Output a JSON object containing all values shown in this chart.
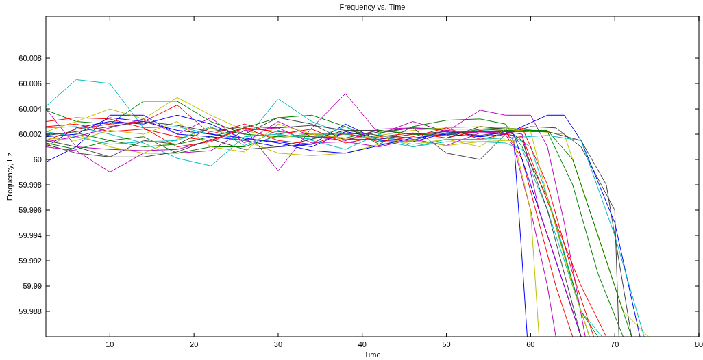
{
  "chart_data": {
    "type": "line",
    "title": "Frequency vs. Time",
    "xlabel": "Time",
    "ylabel": "Frequency, Hz",
    "xlim": [
      2.4,
      80
    ],
    "xticks": [
      10,
      20,
      30,
      40,
      50,
      60,
      70,
      80
    ],
    "ylim": [
      59.986,
      60.0113
    ],
    "yticks": [
      59.988,
      59.99,
      59.992,
      59.994,
      59.996,
      59.998,
      60,
      60.002,
      60.004,
      60.006,
      60.008
    ],
    "grid": false,
    "line_style": "solid",
    "series": [
      {
        "color": "#00bfbf",
        "x": [
          2.4,
          6,
          10,
          14,
          18,
          22,
          26,
          30,
          34,
          38,
          42,
          46,
          50,
          54,
          57,
          60,
          63,
          66,
          68.5
        ],
        "values": [
          60.0042,
          60.0063,
          60.006,
          60.0025,
          60.0026,
          60.002,
          60.0015,
          60.0048,
          60.003,
          60.002,
          60.0016,
          60.002,
          60.0021,
          60.0023,
          60.0022,
          60.001,
          59.995,
          59.988,
          59.986
        ]
      },
      {
        "color": "#bf00bf",
        "x": [
          2.4,
          6,
          10,
          14,
          18,
          22,
          26,
          30,
          34,
          38,
          42,
          46,
          50,
          54,
          57,
          60,
          62,
          64,
          66.5
        ],
        "values": [
          60.004,
          60.001,
          60.0008,
          60.0007,
          60.0008,
          60.0015,
          60.0025,
          59.9991,
          60.0025,
          60.0052,
          60.002,
          60.003,
          60.0022,
          60.0039,
          60.0035,
          60.0035,
          60.001,
          59.995,
          59.986
        ]
      },
      {
        "color": "#0000ff",
        "x": [
          2.4,
          6,
          10,
          14,
          18,
          22,
          26,
          30,
          34,
          38,
          42,
          46,
          50,
          54,
          57,
          58,
          59,
          59.6
        ],
        "values": [
          59.9998,
          60.001,
          60.0035,
          60.0035,
          60.002,
          60.0018,
          60.0015,
          60.001,
          60.0012,
          60.0028,
          60.0015,
          60.0014,
          60.0021,
          60.0022,
          60.0022,
          60.0015,
          59.992,
          59.986
        ]
      },
      {
        "color": "#008000",
        "x": [
          2.4,
          6,
          10,
          14,
          18,
          22,
          26,
          30,
          34,
          38,
          42,
          46,
          50,
          54,
          57,
          62,
          65,
          68,
          71
        ],
        "values": [
          60.0039,
          60.003,
          60.0028,
          60.0046,
          60.0046,
          60.003,
          60.002,
          60.0018,
          60.002,
          60.002,
          60.0021,
          60.0025,
          60.0024,
          60.0024,
          60.0025,
          60.0022,
          59.998,
          59.991,
          59.986
        ]
      },
      {
        "color": "#ff0000",
        "x": [
          2.4,
          6,
          10,
          14,
          18,
          22,
          26,
          30,
          34,
          38,
          42,
          46,
          50,
          54,
          57,
          59,
          61,
          63,
          65
        ],
        "values": [
          60.003,
          60.0033,
          60.0032,
          60.0025,
          60.001,
          60.0014,
          60.0025,
          60.0022,
          60.002,
          60.0016,
          60.0016,
          60.002,
          60.002,
          60.0022,
          60.0023,
          60,
          59.995,
          59.99,
          59.986
        ]
      },
      {
        "color": "#bfbf00",
        "x": [
          2.4,
          6,
          10,
          14,
          18,
          22,
          26,
          30,
          34,
          38,
          42,
          46,
          50,
          54,
          57,
          64,
          67,
          71,
          74
        ],
        "values": [
          60.0022,
          60.003,
          60.004,
          60.0032,
          60.0049,
          60.0035,
          60.0023,
          60.0017,
          60.002,
          60.0016,
          60.0019,
          60.0023,
          60.0025,
          60.0026,
          60.0025,
          60.002,
          59.996,
          59.988,
          59.986
        ]
      },
      {
        "color": "#404040",
        "x": [
          2.4,
          6,
          10,
          14,
          18,
          22,
          26,
          30,
          34,
          38,
          42,
          46,
          50,
          54,
          57,
          60,
          63,
          66,
          70,
          70.5
        ],
        "values": [
          60.0012,
          60.0005,
          60.0002,
          60.0015,
          60.0012,
          60.0025,
          60.002,
          60.0033,
          60.0028,
          60.0015,
          60.0022,
          60.0025,
          60.0005,
          60,
          60.002,
          60.0026,
          60.0025,
          60.001,
          59.996,
          59.986
        ]
      },
      {
        "color": "#0000ff",
        "x": [
          2.4,
          6,
          10,
          14,
          18,
          22,
          26,
          30,
          34,
          38,
          42,
          46,
          50,
          54,
          57,
          62,
          64,
          66,
          70,
          73
        ],
        "values": [
          60.001,
          60.0025,
          60.003,
          60.0028,
          60.0035,
          60.0028,
          60.0016,
          60.0014,
          60.001,
          60.0022,
          60.0017,
          60.0015,
          60.0023,
          60.0018,
          60.002,
          60.0035,
          60.0035,
          60.0015,
          59.995,
          59.986
        ]
      },
      {
        "color": "#008000",
        "x": [
          2.4,
          6,
          10,
          14,
          18,
          22,
          26,
          30,
          34,
          38,
          42,
          46,
          50,
          54,
          57,
          59,
          62,
          66,
          68
        ],
        "values": [
          60.002,
          60.0021,
          60.0015,
          60.001,
          60.0012,
          60.0018,
          60.0025,
          60.0033,
          60.0035,
          60.0026,
          60.0012,
          60.0026,
          60.0031,
          60.0032,
          60.0028,
          60.001,
          59.997,
          59.988,
          59.986
        ]
      },
      {
        "color": "#ff0000",
        "x": [
          2.4,
          6,
          10,
          14,
          18,
          22,
          26,
          30,
          34,
          38,
          42,
          46,
          50,
          54,
          57,
          59,
          63,
          66,
          69
        ],
        "values": [
          60.0015,
          60.0024,
          60.0028,
          60.003,
          60.0043,
          60.002,
          60.0028,
          60.002,
          60.0024,
          60.0013,
          60.0018,
          60.0021,
          60.0017,
          60.0023,
          60.002,
          60.0018,
          59.995,
          59.99,
          59.986
        ]
      },
      {
        "color": "#00bfbf",
        "x": [
          2.4,
          6,
          10,
          14,
          18,
          22,
          26,
          30,
          34,
          38,
          42,
          46,
          50,
          54,
          57,
          59,
          62,
          65,
          67
        ],
        "values": [
          60.0025,
          60.0026,
          60.002,
          60.0013,
          60.0001,
          59.9995,
          60.0018,
          60.002,
          60.0016,
          60.0026,
          60.0015,
          60.001,
          60.0014,
          60.0014,
          60.0013,
          60.0008,
          59.996,
          59.99,
          59.986
        ]
      },
      {
        "color": "#bf00bf",
        "x": [
          2.4,
          6,
          10,
          14,
          18,
          22,
          26,
          30,
          34,
          38,
          42,
          46,
          50,
          54,
          57,
          58,
          60,
          62,
          63
        ],
        "values": [
          60.001,
          60.0007,
          59.999,
          60.0005,
          60.0005,
          60.0007,
          60.0023,
          60.0025,
          60.0013,
          60.0014,
          60.001,
          60.0016,
          60.0011,
          60.0021,
          60.002,
          60.001,
          59.996,
          59.99,
          59.986
        ]
      },
      {
        "color": "#bfbf00",
        "x": [
          2.4,
          6,
          10,
          14,
          18,
          22,
          26,
          30,
          34,
          38,
          42,
          46,
          50,
          54,
          57,
          58,
          60,
          61
        ],
        "values": [
          60.0011,
          60.002,
          60.001,
          60.0005,
          60.0016,
          60.0025,
          60.0015,
          60.0005,
          60.0003,
          60.0005,
          60.0012,
          60.0015,
          60.0011,
          60.0014,
          60.0015,
          60.0015,
          59.996,
          59.986
        ]
      },
      {
        "color": "#404040",
        "x": [
          2.4,
          6,
          10,
          14,
          18,
          22,
          26,
          30,
          34,
          38,
          42,
          46,
          50,
          54,
          57,
          62,
          66,
          69,
          72
        ],
        "values": [
          60.0015,
          60.001,
          60.0002,
          60.0002,
          60.0006,
          60.0016,
          60.0008,
          60.001,
          60.0016,
          60.0023,
          60.0023,
          60.002,
          60.0022,
          60.0019,
          60.0022,
          60.0022,
          60.0015,
          59.998,
          59.986
        ]
      },
      {
        "color": "#0000ff",
        "x": [
          2.4,
          6,
          10,
          14,
          18,
          22,
          26,
          30,
          34,
          38,
          42,
          46,
          50,
          54,
          57,
          58,
          60,
          63,
          66
        ],
        "values": [
          60.0018,
          60.002,
          60.0033,
          60.003,
          60.0023,
          60.002,
          60.0017,
          60.0013,
          60.0007,
          60.0005,
          60.0011,
          60.0017,
          60.002,
          60.0018,
          60.0022,
          60.002,
          59.998,
          59.992,
          59.986
        ]
      },
      {
        "color": "#008000",
        "x": [
          2.4,
          6,
          10,
          14,
          18,
          22,
          26,
          30,
          34,
          38,
          42,
          46,
          50,
          54,
          57,
          62,
          65,
          69,
          72
        ],
        "values": [
          60.0013,
          60.0008,
          60.0015,
          60.0018,
          60.0005,
          60.001,
          60.001,
          60.0019,
          60.0018,
          60.0017,
          60.0023,
          60.002,
          60.0019,
          60.0024,
          60.0023,
          60.0023,
          60,
          59.992,
          59.986
        ]
      },
      {
        "color": "#ff0000",
        "x": [
          2.4,
          6,
          10,
          14,
          18,
          22,
          26,
          30,
          34,
          38,
          42,
          46,
          50,
          54,
          57,
          59,
          62,
          65,
          67.5
        ],
        "values": [
          60.0026,
          60.0028,
          60.0022,
          60.0024,
          60.0018,
          60.0015,
          60.0025,
          60.0015,
          60.0012,
          60.0021,
          60.0014,
          60.0018,
          60.0025,
          60.0016,
          60.002,
          60.0025,
          59.998,
          59.991,
          59.986
        ]
      },
      {
        "color": "#00bfbf",
        "x": [
          2.4,
          6,
          10,
          14,
          18,
          22,
          26,
          30,
          34,
          38,
          42,
          46,
          50,
          54,
          57,
          62,
          66,
          70,
          73.5
        ],
        "values": [
          60.0022,
          60.0018,
          60.0012,
          60.0014,
          60.0015,
          60.0026,
          60.0011,
          60.0023,
          60.0015,
          60.0008,
          60.002,
          60.001,
          60.0016,
          60.0016,
          60.0017,
          60.0019,
          60.0015,
          59.994,
          59.986
        ]
      },
      {
        "color": "#bf00bf",
        "x": [
          2.4,
          6,
          10,
          14,
          18,
          22,
          26,
          30,
          34,
          38,
          42,
          46,
          50,
          54,
          57,
          59,
          61,
          64,
          66
        ],
        "values": [
          60.0014,
          60.0018,
          60.0025,
          60.0032,
          60.002,
          60.0033,
          60.0013,
          60.003,
          60.0018,
          60.0015,
          60.0024,
          60.0025,
          60.0023,
          60.0021,
          60.0022,
          60.002,
          59.996,
          59.99,
          59.986
        ]
      },
      {
        "color": "#bfbf00",
        "x": [
          2.4,
          6,
          10,
          14,
          18,
          22,
          26,
          30,
          34,
          38,
          42,
          46,
          50,
          54,
          57,
          60,
          62,
          65,
          67
        ],
        "values": [
          60.0017,
          60.0015,
          60.0023,
          60.002,
          60.003,
          60.001,
          60.0006,
          60.0028,
          60.002,
          60.0017,
          60.0018,
          60.0012,
          60.0016,
          60.001,
          60.0024,
          60.0022,
          59.997,
          59.99,
          59.986
        ]
      },
      {
        "color": "#404040",
        "x": [
          2.4,
          6,
          10,
          14,
          18,
          22,
          26,
          30,
          34,
          38,
          42,
          46,
          50,
          54,
          57,
          59,
          62,
          64,
          66
        ],
        "values": [
          60.0019,
          60.0022,
          60.0026,
          60.003,
          60.0027,
          60.0022,
          60.0026,
          60.0025,
          60.0027,
          60.0023,
          60.0019,
          60.0017,
          60.0017,
          60.0026,
          60.0024,
          60.0015,
          59.996,
          59.991,
          59.986
        ]
      }
    ]
  }
}
